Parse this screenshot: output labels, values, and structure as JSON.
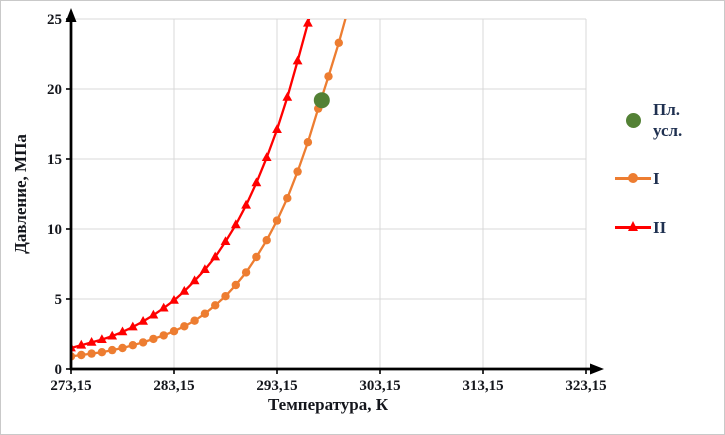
{
  "figure": {
    "background": "#ffffff",
    "border_color": "#c9c9c9"
  },
  "chart_data": {
    "type": "line",
    "title": "",
    "xlabel": "Температура, К",
    "ylabel": "Давление, МПа",
    "xlim": [
      273.15,
      323.15
    ],
    "ylim": [
      0,
      25
    ],
    "grid": true,
    "grid_color": "#d9d9d9",
    "axis_color": "#000000",
    "legend_position": "right",
    "x_ticks": [
      {
        "value": 273.15,
        "label": "273,15"
      },
      {
        "value": 283.15,
        "label": "283,15"
      },
      {
        "value": 293.15,
        "label": "293,15"
      },
      {
        "value": 303.15,
        "label": "303,15"
      },
      {
        "value": 313.15,
        "label": "313,15"
      },
      {
        "value": 323.15,
        "label": "323,15"
      }
    ],
    "y_ticks": [
      {
        "value": 0,
        "label": "0"
      },
      {
        "value": 5,
        "label": "5"
      },
      {
        "value": 10,
        "label": "10"
      },
      {
        "value": 15,
        "label": "15"
      },
      {
        "value": 20,
        "label": "20"
      },
      {
        "value": 25,
        "label": "25"
      }
    ],
    "series": [
      {
        "name": "I",
        "color": "#ED7D31",
        "marker": "circle",
        "points": [
          [
            273.15,
            0.9
          ],
          [
            274.15,
            1.0
          ],
          [
            275.15,
            1.1
          ],
          [
            276.15,
            1.2
          ],
          [
            277.15,
            1.35
          ],
          [
            278.15,
            1.5
          ],
          [
            279.15,
            1.7
          ],
          [
            280.15,
            1.9
          ],
          [
            281.15,
            2.15
          ],
          [
            282.15,
            2.4
          ],
          [
            283.15,
            2.7
          ],
          [
            284.15,
            3.05
          ],
          [
            285.15,
            3.45
          ],
          [
            286.15,
            3.95
          ],
          [
            287.15,
            4.55
          ],
          [
            288.15,
            5.2
          ],
          [
            289.15,
            6.0
          ],
          [
            290.15,
            6.9
          ],
          [
            291.15,
            8.0
          ],
          [
            292.15,
            9.2
          ],
          [
            293.15,
            10.6
          ],
          [
            294.15,
            12.2
          ],
          [
            295.15,
            14.1
          ],
          [
            296.15,
            16.2
          ],
          [
            297.15,
            18.6
          ],
          [
            298.15,
            20.9
          ],
          [
            299.15,
            23.3
          ],
          [
            300.35,
            26.5
          ]
        ]
      },
      {
        "name": "II",
        "color": "#FF0000",
        "marker": "triangle",
        "points": [
          [
            273.15,
            1.5
          ],
          [
            274.15,
            1.7
          ],
          [
            275.15,
            1.9
          ],
          [
            276.15,
            2.1
          ],
          [
            277.15,
            2.35
          ],
          [
            278.15,
            2.65
          ],
          [
            279.15,
            3.0
          ],
          [
            280.15,
            3.4
          ],
          [
            281.15,
            3.85
          ],
          [
            282.15,
            4.35
          ],
          [
            283.15,
            4.9
          ],
          [
            284.15,
            5.55
          ],
          [
            285.15,
            6.3
          ],
          [
            286.15,
            7.1
          ],
          [
            287.15,
            8.0
          ],
          [
            288.15,
            9.1
          ],
          [
            289.15,
            10.3
          ],
          [
            290.15,
            11.7
          ],
          [
            291.15,
            13.3
          ],
          [
            292.15,
            15.1
          ],
          [
            293.15,
            17.1
          ],
          [
            294.15,
            19.4
          ],
          [
            295.15,
            22.0
          ],
          [
            296.15,
            24.7
          ],
          [
            296.9,
            26.8
          ]
        ]
      }
    ],
    "point_series": [
      {
        "name": "Пл. усл.",
        "color": "#538135",
        "marker": "circle",
        "size": 8,
        "point": [
          297.5,
          19.2
        ]
      }
    ]
  },
  "legend": {
    "text_color": "#1f3050",
    "items": [
      {
        "label": "Пл. усл.",
        "type": "point"
      },
      {
        "label": "I",
        "type": "line-circle"
      },
      {
        "label": "II",
        "type": "line-triangle"
      }
    ]
  }
}
